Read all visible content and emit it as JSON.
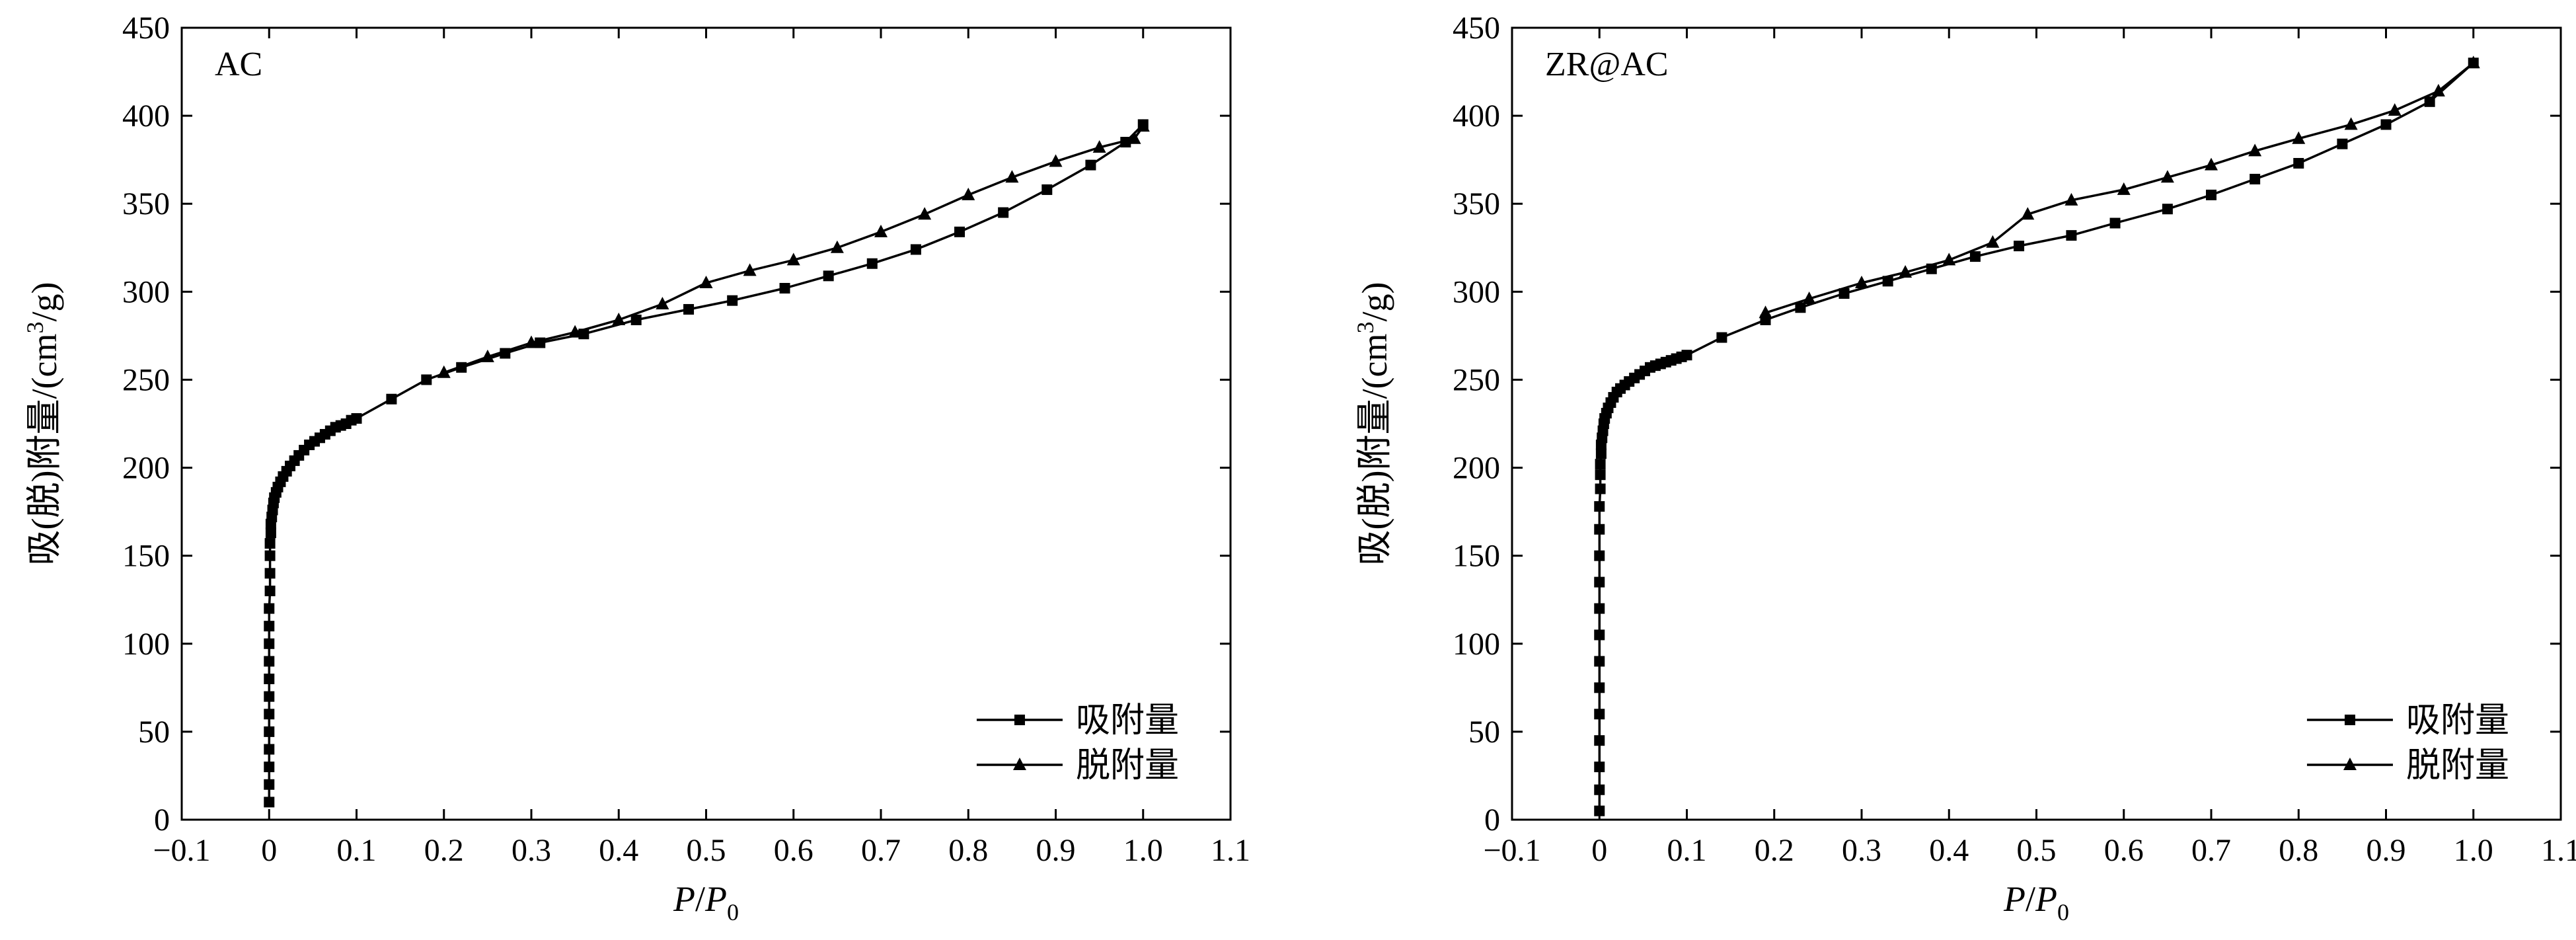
{
  "chart_data": [
    {
      "type": "line",
      "title": "AC",
      "xlabel": "P/P0",
      "xlabel_parts": {
        "p": "P",
        "slash": "/",
        "p0": "P",
        "sub": "0"
      },
      "ylabel": "吸(脱)附量/(cm3/g)",
      "ylabel_parts": {
        "main": "吸(脱)附量/(cm",
        "sup": "3",
        "tail": "/g)"
      },
      "xlim": [
        -0.1,
        1.1
      ],
      "ylim": [
        0,
        450
      ],
      "xticks": [
        "−0.1",
        "0",
        "0.1",
        "0.2",
        "0.3",
        "0.4",
        "0.5",
        "0.6",
        "0.7",
        "0.8",
        "0.9",
        "1.0",
        "1.1"
      ],
      "yticks": [
        "0",
        "50",
        "100",
        "150",
        "200",
        "250",
        "300",
        "350",
        "400",
        "450"
      ],
      "grid": false,
      "legend_position": "bottom-right",
      "series": [
        {
          "name": "吸附量",
          "marker": "square",
          "x": [
            0.0,
            0.0,
            0.0,
            0.0,
            0.0,
            0.0,
            0.0,
            0.0,
            0.0,
            0.0,
            0.0,
            0.0,
            0.001,
            0.001,
            0.001,
            0.001,
            0.002,
            0.002,
            0.003,
            0.004,
            0.005,
            0.006,
            0.008,
            0.01,
            0.013,
            0.016,
            0.02,
            0.024,
            0.029,
            0.034,
            0.04,
            0.046,
            0.052,
            0.058,
            0.064,
            0.07,
            0.076,
            0.082,
            0.088,
            0.094,
            0.1,
            0.14,
            0.18,
            0.22,
            0.27,
            0.31,
            0.36,
            0.42,
            0.48,
            0.53,
            0.59,
            0.64,
            0.69,
            0.74,
            0.79,
            0.84,
            0.89,
            0.94,
            0.98,
            1.0
          ],
          "y": [
            10,
            20,
            30,
            40,
            50,
            60,
            70,
            80,
            90,
            100,
            110,
            120,
            130,
            140,
            150,
            157,
            163,
            168,
            172,
            176,
            180,
            183,
            186,
            189,
            192,
            195,
            198,
            201,
            204,
            207,
            210,
            213,
            215,
            217,
            219,
            221,
            223,
            224,
            225,
            227,
            228,
            239,
            250,
            257,
            265,
            271,
            276,
            284,
            290,
            295,
            302,
            309,
            316,
            324,
            334,
            345,
            358,
            372,
            385,
            395
          ]
        },
        {
          "name": "脱附量",
          "marker": "triangle",
          "x": [
            1.0,
            0.99,
            0.95,
            0.9,
            0.85,
            0.8,
            0.75,
            0.7,
            0.65,
            0.6,
            0.55,
            0.5,
            0.45,
            0.4,
            0.35,
            0.3,
            0.25,
            0.2
          ],
          "y": [
            394,
            387,
            382,
            374,
            365,
            355,
            344,
            334,
            325,
            318,
            312,
            305,
            293,
            284,
            277,
            271,
            263,
            254
          ]
        }
      ]
    },
    {
      "type": "line",
      "title": "ZR@AC",
      "xlabel": "P/P0",
      "xlabel_parts": {
        "p": "P",
        "slash": "/",
        "p0": "P",
        "sub": "0"
      },
      "ylabel": "吸(脱)附量/(cm3/g)",
      "ylabel_parts": {
        "main": "吸(脱)附量/(cm",
        "sup": "3",
        "tail": "/g)"
      },
      "xlim": [
        -0.1,
        1.1
      ],
      "ylim": [
        0,
        450
      ],
      "xticks": [
        "−0.1",
        "0",
        "0.1",
        "0.2",
        "0.3",
        "0.4",
        "0.5",
        "0.6",
        "0.7",
        "0.8",
        "0.9",
        "1.0",
        "1.1"
      ],
      "yticks": [
        "0",
        "50",
        "100",
        "150",
        "200",
        "250",
        "300",
        "350",
        "400",
        "450"
      ],
      "grid": false,
      "legend_position": "bottom-right",
      "series": [
        {
          "name": "吸附量",
          "marker": "square",
          "x": [
            0.0,
            0.0,
            0.0,
            0.0,
            0.0,
            0.0,
            0.0,
            0.0,
            0.0,
            0.0,
            0.0,
            0.0,
            0.0,
            0.001,
            0.001,
            0.001,
            0.002,
            0.002,
            0.003,
            0.004,
            0.005,
            0.006,
            0.008,
            0.01,
            0.013,
            0.016,
            0.02,
            0.024,
            0.029,
            0.034,
            0.04,
            0.046,
            0.052,
            0.058,
            0.064,
            0.07,
            0.076,
            0.082,
            0.088,
            0.094,
            0.1,
            0.14,
            0.19,
            0.23,
            0.28,
            0.33,
            0.38,
            0.43,
            0.48,
            0.54,
            0.59,
            0.65,
            0.7,
            0.75,
            0.8,
            0.85,
            0.9,
            0.95,
            1.0
          ],
          "y": [
            5,
            17,
            30,
            45,
            60,
            75,
            90,
            105,
            120,
            135,
            150,
            165,
            178,
            188,
            196,
            202,
            208,
            213,
            217,
            221,
            225,
            228,
            231,
            234,
            237,
            240,
            243,
            245,
            247,
            249,
            251,
            253,
            255,
            257,
            258,
            259,
            260,
            261,
            262,
            263,
            264,
            274,
            284,
            291,
            299,
            306,
            313,
            320,
            326,
            332,
            339,
            347,
            355,
            364,
            373,
            384,
            395,
            408,
            430
          ]
        },
        {
          "name": "脱附量",
          "marker": "triangle",
          "x": [
            1.0,
            0.96,
            0.91,
            0.86,
            0.8,
            0.75,
            0.7,
            0.65,
            0.6,
            0.54,
            0.49,
            0.45,
            0.4,
            0.35,
            0.3,
            0.24,
            0.19
          ],
          "y": [
            430,
            414,
            403,
            395,
            387,
            380,
            372,
            365,
            358,
            352,
            344,
            328,
            318,
            311,
            305,
            296,
            288
          ]
        }
      ]
    }
  ]
}
